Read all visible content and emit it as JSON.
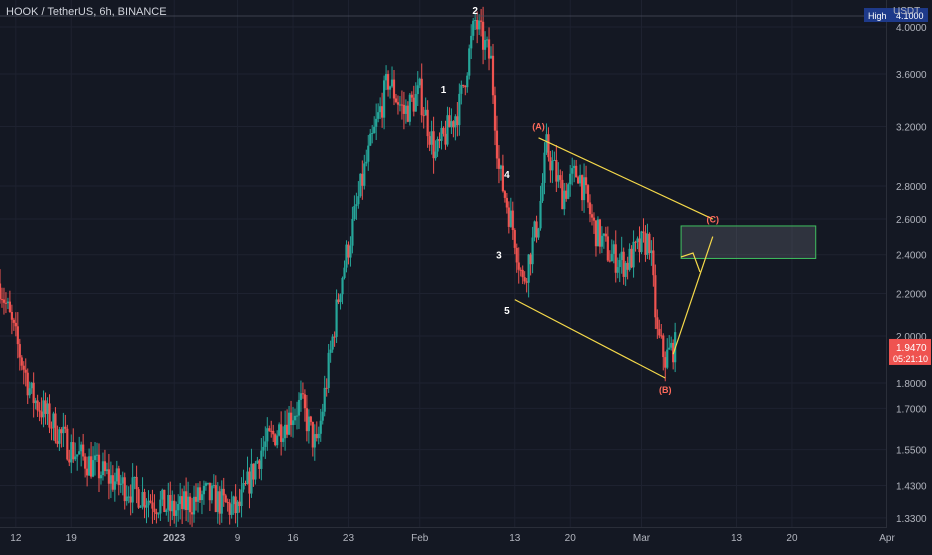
{
  "header": {
    "symbol_title": "HOOK / TetherUS, 6h, BINANCE",
    "currency": "USDT"
  },
  "price_axis": {
    "ticks": [
      "4.0000",
      "3.6000",
      "3.2000",
      "2.8000",
      "2.6000",
      "2.4000",
      "2.2000",
      "2.0000",
      "1.8000",
      "1.7000",
      "1.5500",
      "1.4300",
      "1.3300"
    ],
    "high_label": "High",
    "high_value": "4.1000",
    "last_price": "1.9470",
    "countdown": "05:21:10"
  },
  "time_axis": {
    "labels": [
      "12",
      "19",
      "2023",
      "9",
      "16",
      "23",
      "Feb",
      "13",
      "20",
      "Mar",
      "13",
      "20",
      "Apr"
    ]
  },
  "colors": {
    "background": "#141823",
    "up": "#26a69a",
    "down": "#ef5350",
    "annotation_line": "#f5d94a",
    "target_box_border": "#3fbf5f",
    "high_badge": "#1e3a8a",
    "last_price_badge": "#ef5350"
  },
  "chart_data": {
    "type": "candlestick",
    "title": "HOOK / TetherUS, 6h, BINANCE",
    "y_scale": "log",
    "ylim": [
      1.3,
      4.25
    ],
    "y_unit": "USDT",
    "x_range": [
      "2022-12-10",
      "2023-04-01"
    ],
    "interval": "6h",
    "price_path_approx": [
      {
        "date": "2022-12-10",
        "price": 2.25
      },
      {
        "date": "2022-12-14",
        "price": 1.75
      },
      {
        "date": "2022-12-19",
        "price": 1.55
      },
      {
        "date": "2022-12-24",
        "price": 1.45
      },
      {
        "date": "2023-01-01",
        "price": 1.35
      },
      {
        "date": "2023-01-05",
        "price": 1.4
      },
      {
        "date": "2023-01-09",
        "price": 1.35
      },
      {
        "date": "2023-01-12",
        "price": 1.55
      },
      {
        "date": "2023-01-17",
        "price": 1.72
      },
      {
        "date": "2023-01-19",
        "price": 1.55
      },
      {
        "date": "2023-01-22",
        "price": 2.25
      },
      {
        "date": "2023-01-25",
        "price": 2.9
      },
      {
        "date": "2023-01-28",
        "price": 3.55
      },
      {
        "date": "2023-01-30",
        "price": 3.3
      },
      {
        "date": "2023-02-01",
        "price": 3.45
      },
      {
        "date": "2023-02-03",
        "price": 3.0
      },
      {
        "date": "2023-02-06",
        "price": 3.35
      },
      {
        "date": "2023-02-08",
        "price": 4.05
      },
      {
        "date": "2023-02-10",
        "price": 3.7
      },
      {
        "date": "2023-02-11",
        "price": 2.9
      },
      {
        "date": "2023-02-13",
        "price": 2.5
      },
      {
        "date": "2023-02-14",
        "price": 2.25
      },
      {
        "date": "2023-02-16",
        "price": 2.6
      },
      {
        "date": "2023-02-17",
        "price": 3.05
      },
      {
        "date": "2023-02-19",
        "price": 2.75
      },
      {
        "date": "2023-02-21",
        "price": 2.9
      },
      {
        "date": "2023-02-23",
        "price": 2.55
      },
      {
        "date": "2023-02-25",
        "price": 2.4
      },
      {
        "date": "2023-02-27",
        "price": 2.35
      },
      {
        "date": "2023-03-01",
        "price": 2.45
      },
      {
        "date": "2023-03-02",
        "price": 2.48
      },
      {
        "date": "2023-03-03",
        "price": 2.0
      },
      {
        "date": "2023-03-04",
        "price": 1.9
      },
      {
        "date": "2023-03-05",
        "price": 1.95
      }
    ],
    "annotations": {
      "wave_labels": [
        {
          "text": "1",
          "date": "2023-02-04",
          "price": 3.45
        },
        {
          "text": "2",
          "date": "2023-02-08",
          "price": 4.12
        },
        {
          "text": "3",
          "date": "2023-02-11",
          "price": 2.38
        },
        {
          "text": "4",
          "date": "2023-02-12",
          "price": 2.85
        },
        {
          "text": "5",
          "date": "2023-02-12",
          "price": 2.1
        },
        {
          "text": "(A)",
          "date": "2023-02-16",
          "price": 3.18
        },
        {
          "text": "(B)",
          "date": "2023-03-04",
          "price": 1.76
        },
        {
          "text": "(C)",
          "date": "2023-03-10",
          "price": 2.58
        }
      ],
      "channel_upper": [
        {
          "date": "2023-02-16",
          "price": 3.12
        },
        {
          "date": "2023-03-10",
          "price": 2.6
        }
      ],
      "channel_lower": [
        {
          "date": "2023-02-13",
          "price": 2.17
        },
        {
          "date": "2023-03-04",
          "price": 1.82
        }
      ],
      "projection_arrow": [
        {
          "date": "2023-03-05",
          "price": 1.92
        },
        {
          "date": "2023-03-10",
          "price": 2.5
        }
      ],
      "target_zone": {
        "date_from": "2023-03-06",
        "date_to": "2023-03-23",
        "price_low": 2.38,
        "price_high": 2.56
      }
    }
  }
}
